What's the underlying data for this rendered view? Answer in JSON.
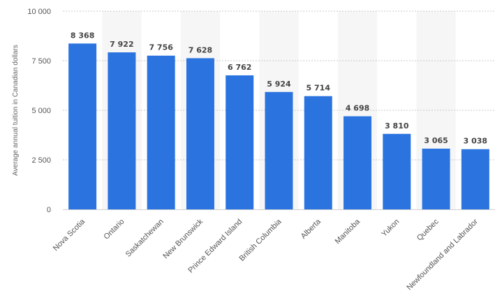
{
  "chart_data": {
    "type": "bar",
    "ylabel": "Average annual tuition in Canadian dollars",
    "ylim": [
      0,
      10000
    ],
    "yticks": [
      0,
      2500,
      5000,
      7500,
      10000
    ],
    "ytick_labels": [
      "0",
      "2 500",
      "5 000",
      "7 500",
      "10 000"
    ],
    "grid": true,
    "categories": [
      "Nova Scotia",
      "Ontario",
      "Saskatchewan",
      "New Brunswick",
      "Prince Edward Island",
      "British Columbia",
      "Alberta",
      "Manitoba",
      "Yukon",
      "Quebec",
      "Newfoundland and Labrador"
    ],
    "values": [
      8368,
      7922,
      7756,
      7628,
      6762,
      5924,
      5714,
      4698,
      3810,
      3065,
      3038
    ],
    "value_labels": [
      "8 368",
      "7 922",
      "7 756",
      "7 628",
      "6 762",
      "5 924",
      "5 714",
      "4 698",
      "3 810",
      "3 065",
      "3 038"
    ],
    "bar_color": "#2b74e0",
    "band_color": "#f6f6f6"
  }
}
